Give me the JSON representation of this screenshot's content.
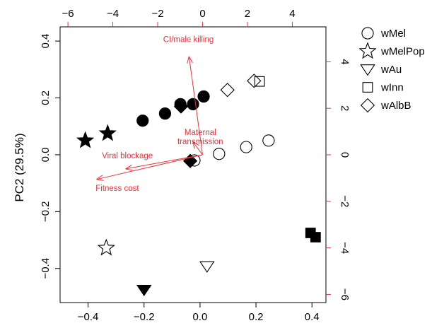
{
  "chart_data": {
    "type": "scatter",
    "title": "",
    "ylabel": "PC2 (29.5%)",
    "xlabel": "",
    "xlim": [
      -0.5,
      0.45
    ],
    "ylim": [
      -0.52,
      0.45
    ],
    "xticks": [
      "−0.4",
      "−0.2",
      "0.0",
      "0.2",
      "0.4"
    ],
    "xtick_values": [
      -0.4,
      -0.2,
      0.0,
      0.2,
      0.4
    ],
    "yticks": [
      "−0.4",
      "−0.2",
      "0.0",
      "0.2",
      "0.4"
    ],
    "ytick_values": [
      -0.4,
      -0.2,
      0.0,
      0.2,
      0.4
    ],
    "top_axis": {
      "color": "#e8323c",
      "ticks": [
        "−6",
        "−4",
        "−2",
        "0",
        "2",
        "4"
      ],
      "tick_values": [
        -6,
        -4,
        -2,
        0,
        2,
        4
      ],
      "lim": [
        -6.35,
        5.5
      ]
    },
    "right_axis": {
      "color": "#e8323c",
      "ticks": [
        "4",
        "2",
        "0",
        "−2",
        "−4",
        "−6"
      ],
      "tick_values": [
        4,
        2,
        0,
        -2,
        -4,
        -6
      ],
      "lim": [
        -6.35,
        5.5
      ]
    },
    "legend": {
      "position": "right-outside",
      "entries": [
        {
          "label": "wMel",
          "marker": "circle"
        },
        {
          "label": "wMelPop",
          "marker": "star"
        },
        {
          "label": "wAu",
          "marker": "triangle-down"
        },
        {
          "label": "wInn",
          "marker": "square"
        },
        {
          "label": "wAlbB",
          "marker": "diamond"
        }
      ]
    },
    "series": [
      {
        "marker": "circle",
        "filled": true,
        "points": [
          [
            -0.205,
            0.12
          ],
          [
            -0.125,
            0.145
          ],
          [
            -0.07,
            0.178
          ],
          [
            -0.025,
            0.178
          ],
          [
            0.013,
            0.205
          ]
        ]
      },
      {
        "marker": "circle",
        "filled": false,
        "points": [
          [
            -0.02,
            -0.02
          ],
          [
            0.068,
            0.003
          ],
          [
            0.165,
            0.027
          ],
          [
            0.245,
            0.05
          ]
        ]
      },
      {
        "marker": "star",
        "filled": true,
        "points": [
          [
            -0.41,
            0.05
          ],
          [
            -0.33,
            0.075
          ]
        ]
      },
      {
        "marker": "star",
        "filled": false,
        "points": [
          [
            -0.335,
            -0.328
          ]
        ]
      },
      {
        "marker": "triangle-down",
        "filled": true,
        "points": [
          [
            -0.2,
            -0.475
          ]
        ]
      },
      {
        "marker": "triangle-down",
        "filled": false,
        "points": [
          [
            0.025,
            -0.392
          ]
        ]
      },
      {
        "marker": "square",
        "filled": true,
        "points": [
          [
            0.395,
            -0.275
          ],
          [
            0.413,
            -0.29
          ]
        ]
      },
      {
        "marker": "square",
        "filled": false,
        "points": [
          [
            0.213,
            0.258
          ]
        ]
      },
      {
        "marker": "diamond",
        "filled": true,
        "points": [
          [
            -0.035,
            -0.022
          ],
          [
            -0.068,
            0.17
          ]
        ]
      },
      {
        "marker": "diamond",
        "filled": false,
        "points": [
          [
            0.098,
            0.228
          ],
          [
            0.193,
            0.26
          ]
        ]
      }
    ],
    "vectors": [
      {
        "label": "CI/male killing",
        "x": -0.6,
        "y": 4.2,
        "label_x": -0.63,
        "label_y": 4.85
      },
      {
        "label": "Maternal transmission",
        "x": -0.42,
        "y": 0.55,
        "label_x": -0.1,
        "label_y": 0.85
      },
      {
        "label": "Viral blockage",
        "x": -3.4,
        "y": -0.6,
        "label_x": -3.35,
        "label_y": -0.15
      },
      {
        "label": "Fitness cost",
        "x": -4.7,
        "y": -1.05,
        "label_x": -3.8,
        "label_y": -1.55
      }
    ]
  }
}
